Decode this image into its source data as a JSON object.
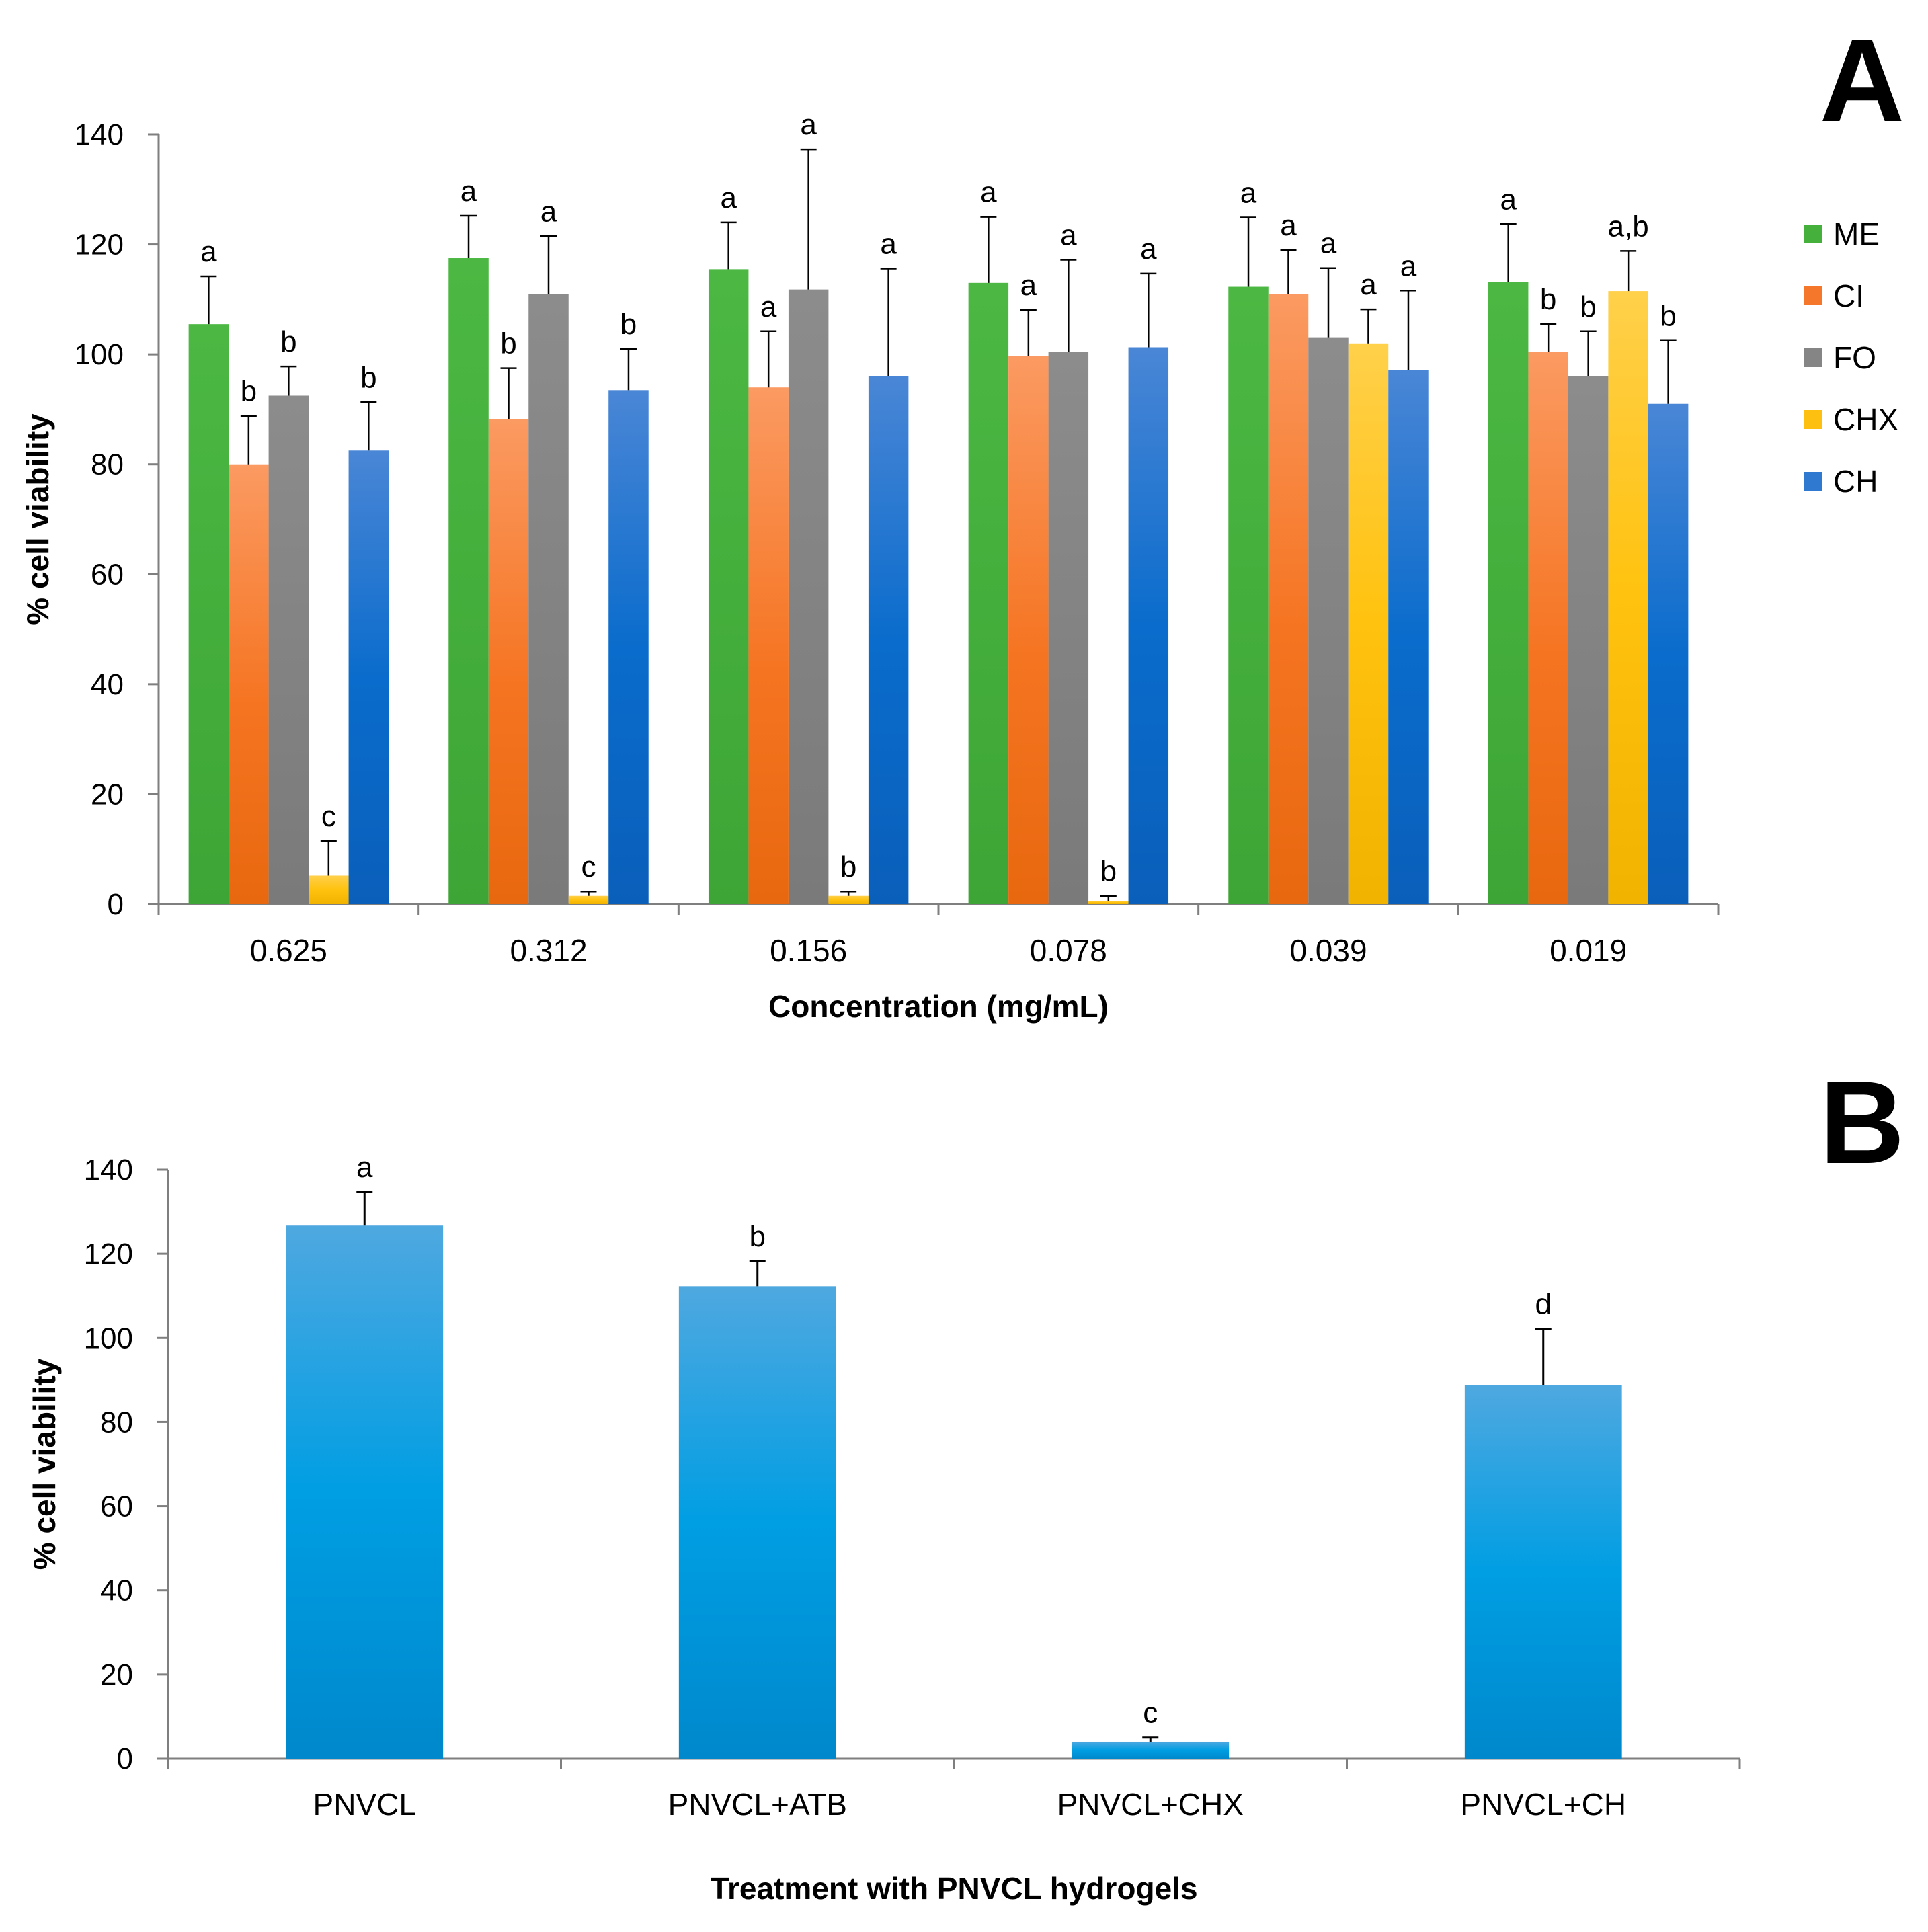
{
  "chart_data": [
    {
      "panel": "A",
      "type": "bar",
      "ylabel": "% cell viability",
      "xlabel": "Concentration (mg/mL)",
      "ylim": [
        0,
        140
      ],
      "yticks": [
        0,
        20,
        40,
        60,
        80,
        100,
        120,
        140
      ],
      "categories": [
        "0.625",
        "0.312",
        "0.156",
        "0.078",
        "0.039",
        "0.019"
      ],
      "series": [
        {
          "name": "ME",
          "color": "#45b03c",
          "values": [
            105.5,
            117.5,
            115.5,
            113,
            112.3,
            113.2
          ],
          "errors": [
            8.7,
            7.7,
            8.5,
            12,
            12.6,
            10.5
          ],
          "letters": [
            "a",
            "a",
            "a",
            "a",
            "a",
            "a"
          ]
        },
        {
          "name": "CI",
          "color": "#f4772b",
          "values": [
            80,
            88.2,
            94,
            99.7,
            111,
            100.5
          ],
          "errors": [
            8.8,
            9.3,
            10.2,
            8.4,
            8,
            5
          ],
          "letters": [
            "b",
            "b",
            "a",
            "a",
            "a",
            "b"
          ]
        },
        {
          "name": "FO",
          "color": "#858585",
          "values": [
            92.5,
            111,
            111.8,
            100.5,
            103,
            96
          ],
          "errors": [
            5.3,
            10.5,
            25.5,
            16.7,
            12.7,
            8.2
          ],
          "letters": [
            "b",
            "a",
            "a",
            "a",
            "a",
            "b"
          ]
        },
        {
          "name": "CHX",
          "color": "#fdbf10",
          "values": [
            5.2,
            1.5,
            1.5,
            0.6,
            102,
            111.5
          ],
          "errors": [
            6.3,
            0.8,
            0.8,
            0.9,
            6.2,
            7.3
          ],
          "letters": [
            "c",
            "c",
            "b",
            "b",
            "a",
            "a,b"
          ]
        },
        {
          "name": "CH",
          "color": "#2f79d0",
          "values": [
            82.5,
            93.5,
            96,
            101.3,
            97.2,
            91
          ],
          "errors": [
            8.8,
            7.5,
            19.6,
            13.4,
            14.4,
            11.5
          ],
          "letters": [
            "b",
            "b",
            "a",
            "a",
            "a",
            "b"
          ]
        }
      ]
    },
    {
      "panel": "B",
      "type": "bar",
      "ylabel": "% cell viability",
      "xlabel": "Treatment with PNVCL hydrogels",
      "ylim": [
        0,
        140
      ],
      "yticks": [
        0,
        20,
        40,
        60,
        80,
        100,
        120,
        140
      ],
      "categories": [
        "PNVCL",
        "PNVCL+ATB",
        "PNVCL+CHX",
        "PNVCL+CH"
      ],
      "series": [
        {
          "name": "PNVCL hydrogels",
          "color": "#0e9be0",
          "values": [
            126.7,
            112.3,
            4,
            88.7
          ],
          "errors": [
            8,
            6,
            1,
            13.5
          ],
          "letters": [
            "a",
            "b",
            "c",
            "d"
          ]
        }
      ]
    }
  ]
}
